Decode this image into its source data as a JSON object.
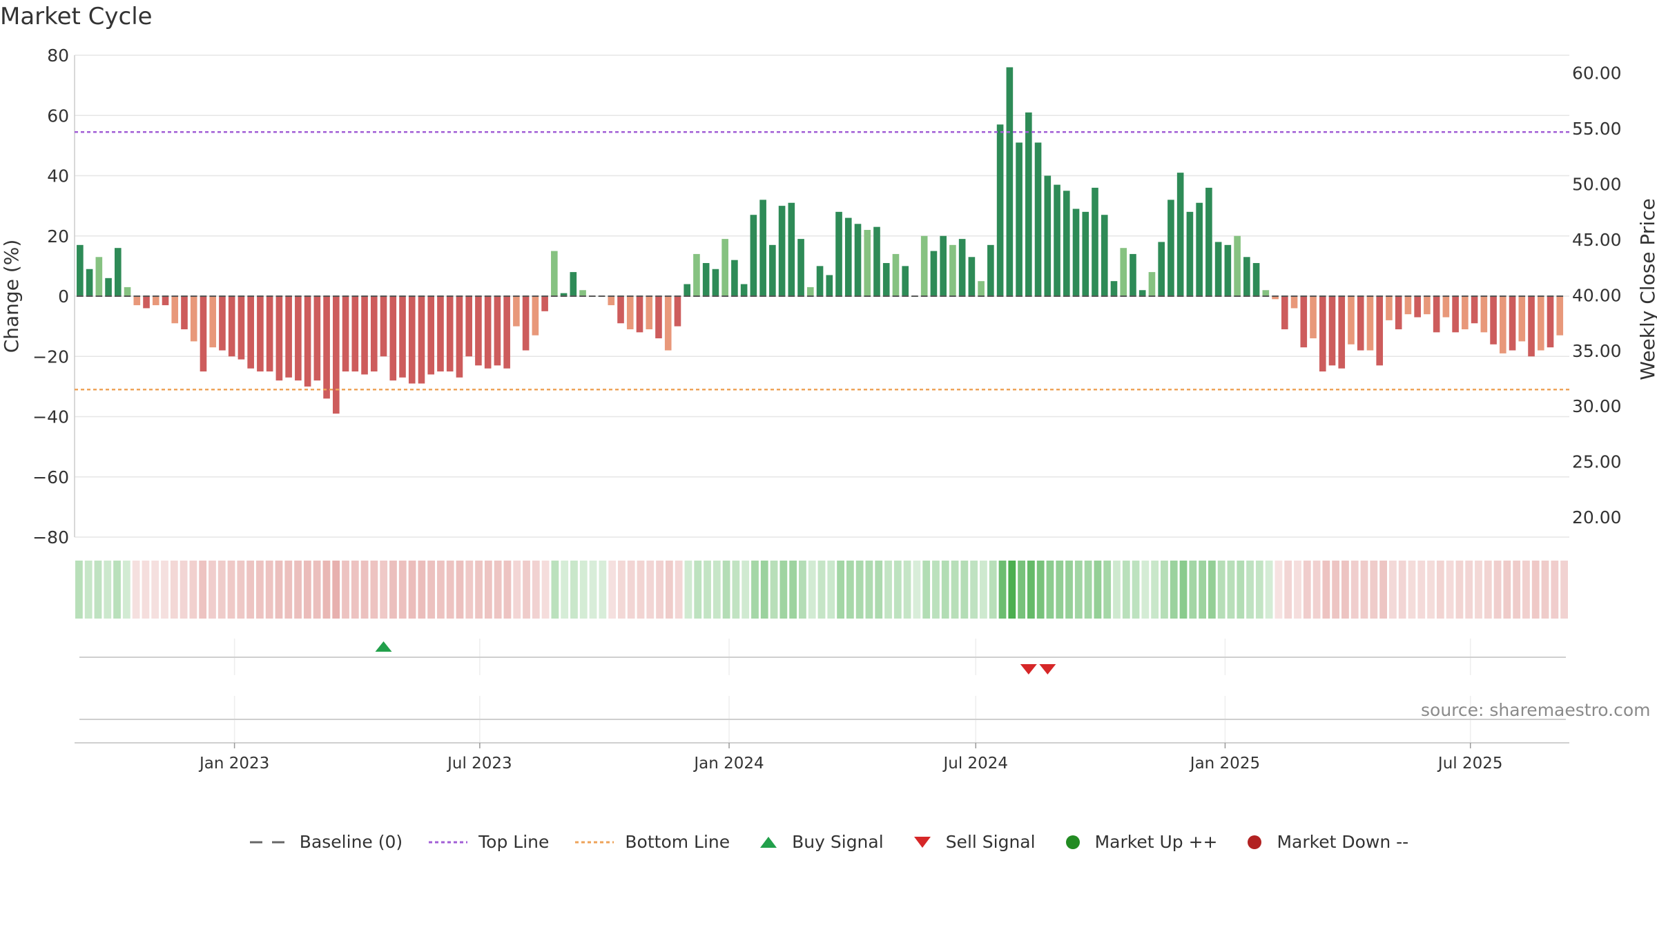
{
  "title": "Market Cycle",
  "source": "source: sharemaestro.com",
  "colors": {
    "strong_up": "#2e8b57",
    "weak_up": "#86c281",
    "strong_down": "#cd5c5c",
    "weak_down": "#e8987a",
    "top_line": "#a25fd6",
    "bottom_line": "#eea35a",
    "buy": "#22a04b",
    "sell": "#d62728",
    "market_up": "#228b22",
    "market_down": "#b22222"
  },
  "legend": [
    {
      "label": "Baseline (0)",
      "icon": "dash-line-icon"
    },
    {
      "label": "Top Line",
      "icon": "dotted-purple-line-icon"
    },
    {
      "label": "Bottom Line",
      "icon": "dotted-orange-line-icon"
    },
    {
      "label": "Buy Signal",
      "icon": "triangle-up-icon"
    },
    {
      "label": "Sell Signal",
      "icon": "triangle-down-icon"
    },
    {
      "label": "Market Up ++",
      "icon": "green-dot-icon"
    },
    {
      "label": "Market Down --",
      "icon": "red-dot-icon"
    }
  ],
  "chart_data": {
    "type": "bar",
    "ylabel": "Change (%)",
    "y2label": "Weekly Close Price",
    "ylim": [
      -80,
      80
    ],
    "yticks": [
      -80,
      -60,
      -40,
      -20,
      0,
      20,
      40,
      60,
      80
    ],
    "y2ticks": [
      "20.00",
      "25.00",
      "30.00",
      "35.00",
      "40.00",
      "45.00",
      "50.00",
      "55.00",
      "60.00"
    ],
    "y2lim": [
      18.2,
      61.6
    ],
    "xlim": [
      "2022-09-05",
      "2025-09-12"
    ],
    "xticks": [
      {
        "date": "2023-01-01",
        "label": "Jan 2023"
      },
      {
        "date": "2023-07-01",
        "label": "Jul 2023"
      },
      {
        "date": "2024-01-01",
        "label": "Jan 2024"
      },
      {
        "date": "2024-07-01",
        "label": "Jul 2024"
      },
      {
        "date": "2025-01-01",
        "label": "Jan 2025"
      },
      {
        "date": "2025-07-01",
        "label": "Jul 2025"
      }
    ],
    "top_line": 54.5,
    "bottom_line": -31,
    "baseline": 0,
    "first_week": "2022-09-09",
    "values": [
      17,
      9,
      13,
      6,
      16,
      3,
      -3,
      -4,
      -3,
      -3,
      -9,
      -11,
      -15,
      -25,
      -17,
      -18,
      -20,
      -21,
      -24,
      -25,
      -25,
      -28,
      -27,
      -28,
      -30,
      -28,
      -34,
      -39,
      -25,
      -25,
      -26,
      -25,
      -20,
      -28,
      -27,
      -29,
      -29,
      -26,
      -25,
      -25,
      -27,
      -20,
      -23,
      -24,
      -23,
      -24,
      -10,
      -18,
      -13,
      -5,
      15,
      1,
      8,
      2,
      0,
      0,
      -3,
      -9,
      -11,
      -12,
      -11,
      -14,
      -18,
      -10,
      4,
      14,
      11,
      9,
      19,
      12,
      4,
      27,
      32,
      17,
      30,
      31,
      19,
      3,
      10,
      7,
      28,
      26,
      24,
      22,
      23,
      11,
      14,
      10,
      0,
      20,
      15,
      20,
      17,
      19,
      13,
      5,
      17,
      57,
      76,
      51,
      61,
      51,
      40,
      37,
      35,
      29,
      28,
      36,
      27,
      5,
      16,
      14,
      2,
      8,
      18,
      32,
      41,
      28,
      31,
      36,
      18,
      17,
      20,
      13,
      11,
      2,
      -1,
      -11,
      -4,
      -17,
      -14,
      -25,
      -23,
      -24,
      -16,
      -18,
      -18,
      -23,
      -8,
      -11,
      -6,
      -7,
      -6,
      -12,
      -7,
      -12,
      -11,
      -9,
      -12,
      -16,
      -19,
      -18,
      -15,
      -20,
      -18,
      -17,
      -13
    ],
    "buy_signals": [
      "2023-04-21"
    ],
    "sell_signals": [
      "2024-08-09",
      "2024-08-23"
    ]
  }
}
